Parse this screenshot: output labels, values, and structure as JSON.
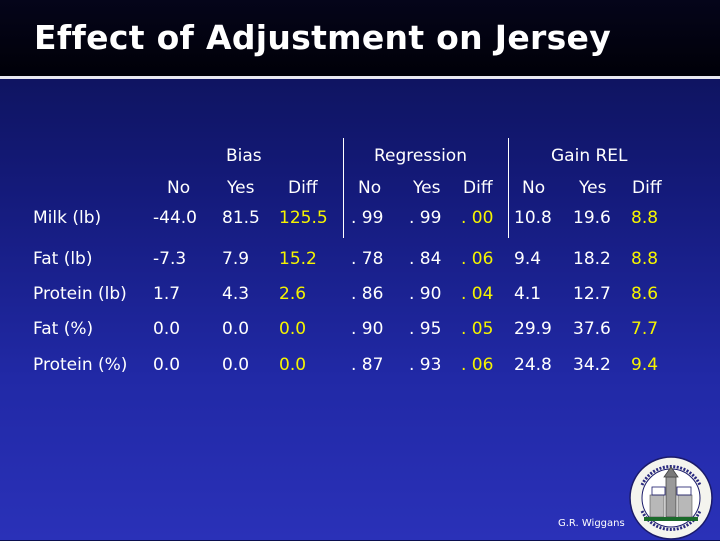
{
  "title": "Effect of Adjustment on Jersey",
  "groups": [
    "Bias",
    "Regression",
    "Gain REL"
  ],
  "subheaders": [
    "No",
    "Yes",
    "Diff",
    "No",
    "Yes",
    "Diff",
    "No",
    "Yes",
    "Diff"
  ],
  "rows": [
    {
      "label": "Milk (lb)",
      "values": [
        "-44.0",
        "81.5",
        "125.5",
        ". 99",
        ". 99",
        ". 00",
        "10.8",
        "19.6",
        "8.8"
      ]
    },
    {
      "label": "Fat (lb)",
      "values": [
        "-7.3",
        "7.9",
        "15.2",
        ". 78",
        ". 84",
        ". 06",
        "9.4",
        "18.2",
        "8.8"
      ]
    },
    {
      "label": "Protein (lb)",
      "values": [
        "1.7",
        "4.3",
        "2.6",
        ". 86",
        ". 90",
        ". 04",
        "4.1",
        "12.7",
        "8.6"
      ]
    },
    {
      "label": "Fat (%)",
      "values": [
        "0.0",
        "0.0",
        "0.0",
        ". 90",
        ". 95",
        ". 05",
        "29.9",
        "37.6",
        "7.7"
      ]
    },
    {
      "label": "Protein (%)",
      "values": [
        "0.0",
        "0.0",
        "0.0",
        ". 87",
        ". 93",
        ". 06",
        "24.8",
        "34.2",
        "9.4"
      ]
    }
  ],
  "footer": "G.R. Wiggans",
  "colors": {
    "text": "#ffffff",
    "diff_highlight": "#f5f400",
    "background": "#1a2190"
  }
}
